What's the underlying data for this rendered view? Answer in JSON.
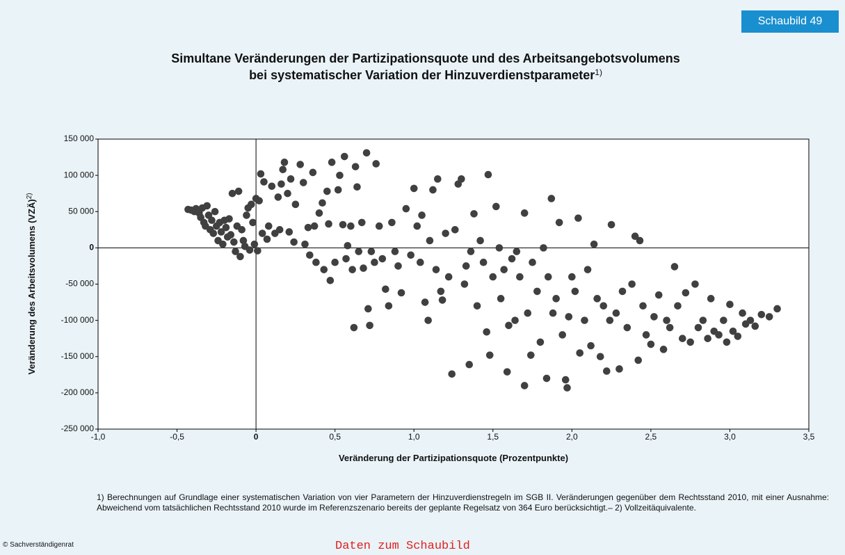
{
  "badge": "Schaubild 49",
  "footnote": "1) Berechnungen auf Grundlage einer systematischen Variation von vier Parametern der Hinzuverdienstregeln im SGB II. Veränderungen gegenüber dem Rechtsstand 2010, mit einer Ausnahme: Abweichend vom tatsächlichen Rechtsstand 2010 wurde im Referenzszenario bereits der geplante Regelsatz von 364 Euro berücksichtigt.– 2) Vollzeitäquivalente.",
  "copyright": "© Sachverständigenrat",
  "link": "Daten zum Schaubild",
  "chart_data": {
    "type": "scatter",
    "title": [
      "Simultane Veränderungen der Partizipationsquote und des Arbeitsangebotsvolumens",
      "bei systematischer Variation der Hinzuverdienstparameter"
    ],
    "title_note": "1)",
    "xlabel": "Veränderung der Partizipationsquote (Prozentpunkte)",
    "ylabel": "Veränderung des Arbeitsvolumens (VZÄ)",
    "ylabel_note": "2)",
    "xlim": [
      -1,
      3.5
    ],
    "ylim": [
      -250000,
      150000
    ],
    "xticks": [
      {
        "value": -1,
        "label": "-1,0"
      },
      {
        "value": -0.5,
        "label": "-0,5"
      },
      0,
      {
        "value": 0.5,
        "label": "0,5"
      },
      {
        "value": 1,
        "label": "1,0"
      },
      {
        "value": 1.5,
        "label": "1,5"
      },
      {
        "value": 2,
        "label": "2,0"
      },
      {
        "value": 2.5,
        "label": "2,5"
      },
      {
        "value": 3,
        "label": "3,0"
      },
      {
        "value": 3.5,
        "label": "3,5"
      }
    ],
    "yticks": [
      {
        "value": 150000,
        "label": "150 000"
      },
      {
        "value": 100000,
        "label": "100 000"
      },
      {
        "value": 50000,
        "label": "50 000"
      },
      0,
      {
        "value": -50000,
        "label": "-50 000"
      },
      {
        "value": -100000,
        "label": "-100 000"
      },
      {
        "value": -150000,
        "label": "-150 000"
      },
      {
        "value": -200000,
        "label": "-200 000"
      },
      {
        "value": -250000,
        "label": "-250 000"
      }
    ],
    "color": "#404040",
    "x": [
      -0.43,
      -0.41,
      -0.39,
      -0.38,
      -0.36,
      -0.35,
      -0.34,
      -0.33,
      -0.32,
      -0.31,
      -0.3,
      -0.29,
      -0.28,
      -0.27,
      -0.26,
      -0.25,
      -0.24,
      -0.23,
      -0.22,
      -0.21,
      -0.2,
      -0.19,
      -0.18,
      -0.17,
      -0.16,
      -0.15,
      -0.14,
      -0.13,
      -0.12,
      -0.11,
      -0.1,
      -0.09,
      -0.08,
      -0.07,
      -0.06,
      -0.05,
      -0.04,
      -0.03,
      -0.02,
      -0.01,
      0.0,
      0.01,
      0.02,
      0.03,
      0.04,
      0.05,
      0.07,
      0.08,
      0.1,
      0.12,
      0.14,
      0.15,
      0.16,
      0.17,
      0.18,
      0.2,
      0.21,
      0.22,
      0.24,
      0.25,
      0.28,
      0.3,
      0.31,
      0.33,
      0.34,
      0.36,
      0.37,
      0.38,
      0.4,
      0.42,
      0.43,
      0.45,
      0.46,
      0.47,
      0.48,
      0.5,
      0.52,
      0.53,
      0.55,
      0.56,
      0.57,
      0.58,
      0.6,
      0.61,
      0.62,
      0.63,
      0.64,
      0.65,
      0.67,
      0.68,
      0.7,
      0.71,
      0.72,
      0.73,
      0.75,
      0.76,
      0.78,
      0.8,
      0.82,
      0.84,
      0.86,
      0.88,
      0.9,
      0.92,
      0.95,
      0.98,
      1.0,
      1.02,
      1.04,
      1.05,
      1.07,
      1.09,
      1.1,
      1.12,
      1.14,
      1.15,
      1.17,
      1.18,
      1.2,
      1.22,
      1.24,
      1.26,
      1.28,
      1.3,
      1.32,
      1.33,
      1.35,
      1.36,
      1.38,
      1.4,
      1.42,
      1.44,
      1.46,
      1.47,
      1.48,
      1.5,
      1.52,
      1.54,
      1.55,
      1.57,
      1.59,
      1.6,
      1.62,
      1.64,
      1.65,
      1.67,
      1.7,
      1.7,
      1.72,
      1.74,
      1.75,
      1.78,
      1.8,
      1.82,
      1.84,
      1.85,
      1.87,
      1.88,
      1.9,
      1.92,
      1.94,
      1.96,
      1.97,
      1.98,
      2.0,
      2.02,
      2.04,
      2.05,
      2.08,
      2.1,
      2.12,
      2.14,
      2.16,
      2.18,
      2.2,
      2.22,
      2.24,
      2.25,
      2.28,
      2.3,
      2.32,
      2.35,
      2.38,
      2.4,
      2.42,
      2.43,
      2.45,
      2.47,
      2.5,
      2.52,
      2.55,
      2.58,
      2.6,
      2.62,
      2.65,
      2.67,
      2.7,
      2.72,
      2.75,
      2.78,
      2.8,
      2.83,
      2.86,
      2.88,
      2.9,
      2.93,
      2.96,
      2.98,
      3.0,
      3.02,
      3.05,
      3.08,
      3.1,
      3.13,
      3.16,
      3.2,
      3.25,
      3.3
    ],
    "values": [
      53000,
      52000,
      50000,
      54000,
      48000,
      42000,
      55000,
      35000,
      30000,
      58000,
      45000,
      25000,
      38000,
      20000,
      50000,
      30000,
      10000,
      35000,
      22000,
      5000,
      38000,
      28000,
      15000,
      40000,
      18000,
      75000,
      8000,
      -5000,
      30000,
      78000,
      -12000,
      25000,
      10000,
      2000,
      45000,
      55000,
      -3000,
      60000,
      35000,
      5000,
      68000,
      -4000,
      65000,
      102000,
      20000,
      91000,
      12000,
      30000,
      85000,
      20000,
      70000,
      25000,
      88000,
      108000,
      118000,
      75000,
      22000,
      95000,
      8000,
      60000,
      115000,
      90000,
      5000,
      28000,
      -10000,
      104000,
      30000,
      -20000,
      48000,
      62000,
      -30000,
      78000,
      33000,
      -45000,
      118000,
      -20000,
      80000,
      100000,
      32000,
      126000,
      -15000,
      3000,
      30000,
      -30000,
      -110000,
      112000,
      84000,
      -5000,
      35000,
      -28000,
      131000,
      -84000,
      -107000,
      -5000,
      -20000,
      116000,
      30000,
      -15000,
      -57000,
      -80000,
      35000,
      -5000,
      -25000,
      -62000,
      54000,
      -10000,
      82000,
      30000,
      -20000,
      45000,
      -75000,
      -100000,
      10000,
      80000,
      -30000,
      95000,
      -60000,
      -72000,
      20000,
      -40000,
      -174000,
      25000,
      88000,
      95000,
      -50000,
      -25000,
      -161000,
      -5000,
      47000,
      -80000,
      10000,
      -20000,
      -116000,
      101000,
      -148000,
      -40000,
      57000,
      0,
      -70000,
      -30000,
      -171000,
      -107000,
      -15000,
      -100000,
      -5000,
      -40000,
      48000,
      -190000,
      -90000,
      -148000,
      -20000,
      -60000,
      -130000,
      0,
      -180000,
      -40000,
      68000,
      -90000,
      -70000,
      35000,
      -120000,
      -182000,
      -193000,
      -95000,
      -40000,
      -60000,
      41000,
      -145000,
      -100000,
      -30000,
      -135000,
      5000,
      -70000,
      -150000,
      -80000,
      -170000,
      -100000,
      32000,
      -90000,
      -167000,
      -60000,
      -110000,
      -50000,
      16000,
      -155000,
      10000,
      -80000,
      -120000,
      -133000,
      -95000,
      -65000,
      -140000,
      -100000,
      -110000,
      -26000,
      -80000,
      -125000,
      -62000,
      -130000,
      -50000,
      -110000,
      -100000,
      -125000,
      -70000,
      -115000,
      -120000,
      -100000,
      -130000,
      -78000,
      -115000,
      -122000,
      -90000,
      -105000,
      -100000,
      -108000,
      -92000,
      -95000,
      -84000
    ]
  }
}
